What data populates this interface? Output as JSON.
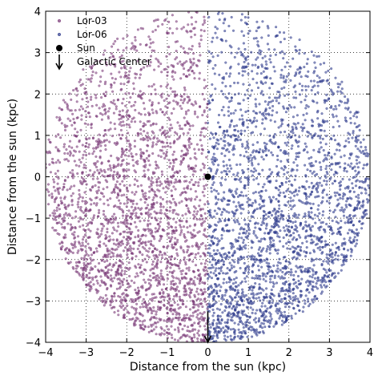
{
  "chart_data": {
    "type": "scatter",
    "title": "",
    "xlabel": "Distance from the sun (kpc)",
    "ylabel": "Distance from the sun (kpc)",
    "xlim": [
      -4,
      4
    ],
    "ylim": [
      -4,
      4
    ],
    "xticks": [
      -4,
      -3,
      -2,
      -1,
      0,
      1,
      2,
      3,
      4
    ],
    "yticks": [
      -4,
      -3,
      -2,
      -1,
      0,
      1,
      2,
      3,
      4
    ],
    "xtick_labels": [
      "−4",
      "−3",
      "−2",
      "−1",
      "0",
      "1",
      "2",
      "3",
      "4"
    ],
    "ytick_labels": [
      "−4",
      "−3",
      "−2",
      "−1",
      "0",
      "1",
      "2",
      "3",
      "4"
    ],
    "grid": true,
    "grid_style": "dotted",
    "legend_position": "top-left",
    "series": [
      {
        "name": "Lor-03",
        "color": "#7a3a78",
        "marker": "small-circle",
        "region": "x <= 0, within a 4 kpc radius disc, density increasing toward y = -4"
      },
      {
        "name": "Lor-06",
        "color": "#2e3b8c",
        "marker": "small-circle",
        "region": "x >= 0, within a 4 kpc radius disc, density increasing toward y = -4"
      },
      {
        "name": "Sun",
        "color": "#000000",
        "marker": "filled-circle",
        "x": 0,
        "y": 0
      },
      {
        "name": "Galactic Center",
        "color": "#000000",
        "marker": "down-arrow",
        "x": 0,
        "y": -4,
        "arrow_from_y": -3.25
      }
    ],
    "legend": {
      "entries": [
        {
          "label": "Lor-03",
          "marker": "small-circle",
          "color": "#7a3a78"
        },
        {
          "label": "Lor-06",
          "marker": "small-circle",
          "color": "#2e3b8c"
        },
        {
          "label": "Sun",
          "marker": "filled-circle",
          "color": "#000000"
        },
        {
          "label": "Galactic Center",
          "marker": "down-arrow",
          "color": "#000000"
        }
      ]
    }
  }
}
